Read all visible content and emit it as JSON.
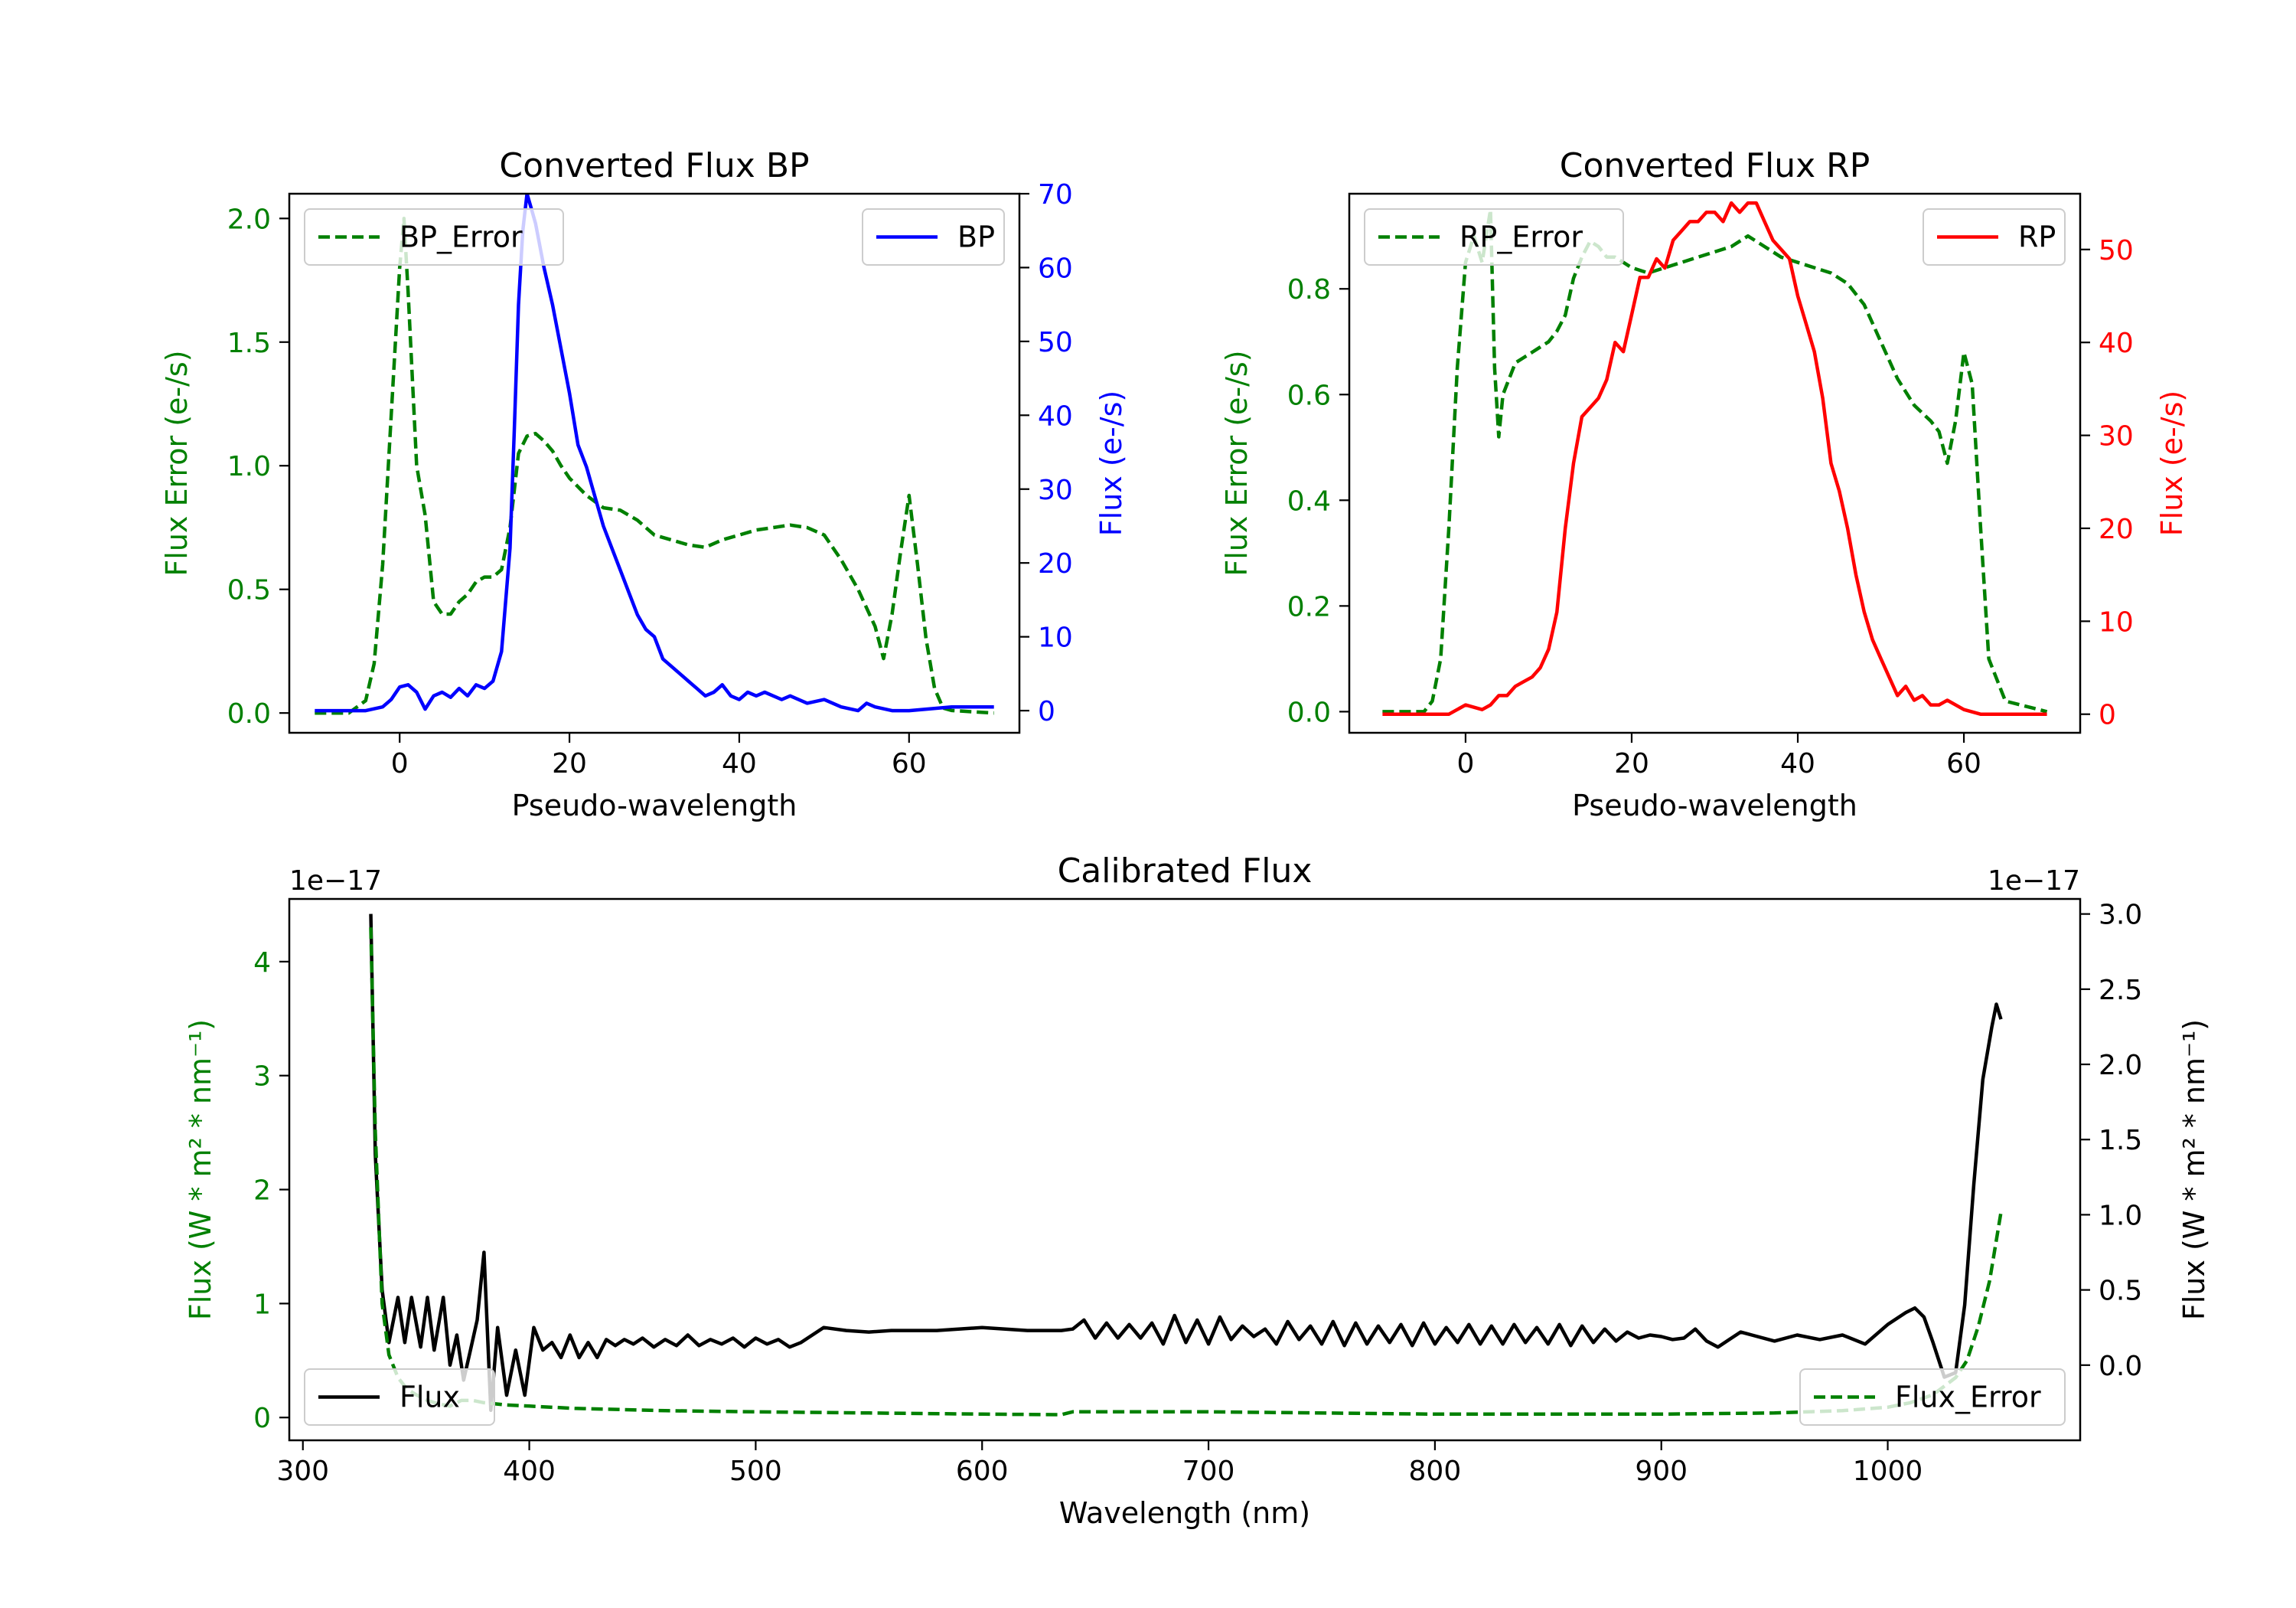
{
  "colors": {
    "bp": "#0000ff",
    "rp": "#ff0000",
    "error": "#008000",
    "flux": "#000000",
    "axis": "#000000"
  },
  "chart_data": [
    {
      "id": "bp",
      "type": "line",
      "title": "Converted Flux BP",
      "xlabel": "Pseudo-wavelength",
      "ylabel_left": "Flux Error (e-/s)",
      "ylabel_right": "Flux (e-/s)",
      "xlim": [
        -13,
        73
      ],
      "ylim_left": [
        -0.08,
        2.1
      ],
      "ylim_right": [
        -3,
        70
      ],
      "xticks": [
        0,
        20,
        40,
        60
      ],
      "yticks_left": [
        0.0,
        0.5,
        1.0,
        1.5,
        2.0
      ],
      "yticks_left_labels": [
        "0.0",
        "0.5",
        "1.0",
        "1.5",
        "2.0"
      ],
      "yticks_right": [
        0,
        10,
        20,
        30,
        40,
        50,
        60,
        70
      ],
      "yticks_right_labels": [
        "0",
        "10",
        "20",
        "30",
        "40",
        "50",
        "60",
        "70"
      ],
      "legend_left": "BP_Error",
      "legend_right": "BP",
      "series": [
        {
          "name": "BP_Error",
          "axis": "left",
          "style": "dashed",
          "color": "#008000",
          "x": [
            -10,
            -6,
            -4,
            -3,
            -2,
            -1,
            0,
            0.5,
            1,
            2,
            3,
            4,
            5,
            6,
            7,
            8,
            9,
            10,
            11,
            12,
            13,
            14,
            15,
            16,
            17,
            18,
            19,
            20,
            22,
            24,
            26,
            28,
            30,
            32,
            34,
            36,
            38,
            40,
            42,
            44,
            46,
            48,
            50,
            52,
            54,
            56,
            57,
            58,
            59,
            60,
            61,
            62,
            63,
            64,
            65,
            70
          ],
          "y": [
            0.0,
            0.0,
            0.05,
            0.2,
            0.6,
            1.2,
            1.8,
            2.0,
            1.7,
            1.0,
            0.8,
            0.45,
            0.4,
            0.4,
            0.45,
            0.48,
            0.53,
            0.55,
            0.55,
            0.58,
            0.75,
            1.05,
            1.12,
            1.13,
            1.1,
            1.06,
            1.0,
            0.95,
            0.88,
            0.83,
            0.82,
            0.78,
            0.72,
            0.7,
            0.68,
            0.67,
            0.7,
            0.72,
            0.74,
            0.75,
            0.76,
            0.75,
            0.72,
            0.62,
            0.5,
            0.35,
            0.22,
            0.4,
            0.65,
            0.88,
            0.6,
            0.3,
            0.1,
            0.02,
            0.01,
            0.0
          ]
        },
        {
          "name": "BP",
          "axis": "right",
          "style": "solid",
          "color": "#0000ff",
          "x": [
            -10,
            -6,
            -4,
            -2,
            -1,
            0,
            1,
            2,
            3,
            4,
            5,
            6,
            7,
            8,
            9,
            10,
            11,
            12,
            13,
            13.5,
            14,
            14.5,
            15,
            15.5,
            16,
            17,
            18,
            19,
            20,
            21,
            22,
            23,
            24,
            25,
            26,
            27,
            28,
            29,
            30,
            31,
            32,
            33,
            34,
            35,
            36,
            37,
            38,
            39,
            40,
            41,
            42,
            43,
            44,
            45,
            46,
            48,
            50,
            52,
            54,
            55,
            56,
            58,
            60,
            65,
            70
          ],
          "y": [
            0,
            0,
            0,
            0.5,
            1.5,
            3.2,
            3.5,
            2.5,
            0.2,
            2.0,
            2.5,
            1.8,
            3.0,
            2.0,
            3.5,
            3.0,
            4.0,
            8.0,
            22,
            38,
            55,
            65,
            70,
            68,
            66,
            60,
            55,
            49,
            43,
            36,
            33,
            29,
            25,
            22,
            19,
            16,
            13,
            11,
            10,
            7,
            6,
            5,
            4,
            3,
            2,
            2.5,
            3.5,
            2,
            1.5,
            2.5,
            2.0,
            2.5,
            2.0,
            1.5,
            2.0,
            1.0,
            1.5,
            0.5,
            0.0,
            1.0,
            0.5,
            0.0,
            0.0,
            0.5,
            0.5
          ]
        }
      ]
    },
    {
      "id": "rp",
      "type": "line",
      "title": "Converted Flux RP",
      "xlabel": "Pseudo-wavelength",
      "ylabel_left": "Flux Error (e-/s)",
      "ylabel_right": "Flux (e-/s)",
      "xlim": [
        -14,
        74
      ],
      "ylim_left": [
        -0.04,
        0.98
      ],
      "ylim_right": [
        -2,
        56
      ],
      "xticks": [
        0,
        20,
        40,
        60
      ],
      "yticks_left": [
        0.0,
        0.2,
        0.4,
        0.6,
        0.8
      ],
      "yticks_left_labels": [
        "0.0",
        "0.2",
        "0.4",
        "0.6",
        "0.8"
      ],
      "yticks_right": [
        0,
        10,
        20,
        30,
        40,
        50
      ],
      "yticks_right_labels": [
        "0",
        "10",
        "20",
        "30",
        "40",
        "50"
      ],
      "legend_left": "RP_Error",
      "legend_right": "RP",
      "series": [
        {
          "name": "RP_Error",
          "axis": "left",
          "style": "dashed",
          "color": "#008000",
          "x": [
            -10,
            -5,
            -4,
            -3,
            -2,
            -1,
            0,
            1,
            2,
            3,
            3.5,
            4,
            4.5,
            5,
            6,
            7,
            8,
            9,
            10,
            11,
            12,
            13,
            14,
            15,
            16,
            17,
            18,
            20,
            22,
            24,
            26,
            28,
            30,
            32,
            34,
            36,
            38,
            40,
            42,
            44,
            46,
            48,
            50,
            52,
            54,
            56,
            57,
            58,
            59,
            60,
            61,
            62,
            63,
            65,
            70
          ],
          "y": [
            0.0,
            0.0,
            0.02,
            0.1,
            0.35,
            0.65,
            0.85,
            0.9,
            0.85,
            0.95,
            0.65,
            0.52,
            0.6,
            0.62,
            0.66,
            0.67,
            0.68,
            0.69,
            0.7,
            0.72,
            0.75,
            0.82,
            0.86,
            0.89,
            0.88,
            0.86,
            0.86,
            0.84,
            0.83,
            0.84,
            0.85,
            0.86,
            0.87,
            0.88,
            0.9,
            0.88,
            0.86,
            0.85,
            0.84,
            0.83,
            0.81,
            0.77,
            0.7,
            0.63,
            0.58,
            0.55,
            0.53,
            0.47,
            0.55,
            0.68,
            0.62,
            0.35,
            0.1,
            0.02,
            0.0
          ]
        },
        {
          "name": "RP",
          "axis": "right",
          "style": "solid",
          "color": "#ff0000",
          "x": [
            -10,
            -4,
            -2,
            0,
            2,
            3,
            4,
            5,
            6,
            7,
            8,
            9,
            10,
            11,
            12,
            13,
            14,
            15,
            16,
            17,
            18,
            19,
            20,
            21,
            22,
            23,
            24,
            25,
            26,
            27,
            28,
            29,
            30,
            31,
            32,
            33,
            34,
            35,
            36,
            37,
            38,
            39,
            40,
            41,
            42,
            43,
            44,
            45,
            46,
            47,
            48,
            49,
            50,
            51,
            52,
            53,
            54,
            55,
            56,
            57,
            58,
            59,
            60,
            62,
            65,
            70
          ],
          "y": [
            0,
            0,
            0,
            1,
            0.5,
            1,
            2,
            2,
            3,
            3.5,
            4,
            5,
            7,
            11,
            20,
            27,
            32,
            33,
            34,
            36,
            40,
            39,
            43,
            47,
            47,
            49,
            48,
            51,
            52,
            53,
            53,
            54,
            54,
            53,
            55,
            54,
            55,
            55,
            53,
            51,
            50,
            49,
            45,
            42,
            39,
            34,
            27,
            24,
            20,
            15,
            11,
            8,
            6,
            4,
            2,
            3,
            1.5,
            2,
            1,
            1,
            1.5,
            1,
            0.5,
            0,
            0,
            0
          ]
        }
      ]
    },
    {
      "id": "cal",
      "type": "line",
      "title": "Calibrated Flux",
      "xlabel": "Wavelength (nm)",
      "ylabel_left": "Flux (W * m² * nm⁻¹)",
      "ylabel_right": "Flux (W * m² * nm⁻¹)",
      "offset_left": "1e−17",
      "offset_right": "1e−17",
      "xlim": [
        294,
        1085
      ],
      "ylim_left": [
        -0.2,
        4.55
      ],
      "ylim_right": [
        -0.5,
        3.1
      ],
      "xticks": [
        300,
        400,
        500,
        600,
        700,
        800,
        900,
        1000
      ],
      "yticks_left": [
        0,
        1,
        2,
        3,
        4
      ],
      "yticks_left_labels": [
        "0",
        "1",
        "2",
        "3",
        "4"
      ],
      "yticks_right": [
        0.0,
        0.5,
        1.0,
        1.5,
        2.0,
        2.5,
        3.0
      ],
      "yticks_right_labels": [
        "0.0",
        "0.5",
        "1.0",
        "1.5",
        "2.0",
        "2.5",
        "3.0"
      ],
      "legend_left": "Flux",
      "legend_right": "Flux_Error",
      "series": [
        {
          "name": "Flux",
          "axis": "right",
          "style": "solid",
          "color": "#000000",
          "x": [
            330,
            332,
            335,
            338,
            342,
            345,
            348,
            352,
            355,
            358,
            362,
            365,
            368,
            371,
            374,
            377,
            380,
            383,
            386,
            390,
            394,
            398,
            402,
            406,
            410,
            414,
            418,
            422,
            426,
            430,
            434,
            438,
            442,
            446,
            450,
            455,
            460,
            465,
            470,
            475,
            480,
            485,
            490,
            495,
            500,
            505,
            510,
            515,
            520,
            530,
            540,
            550,
            560,
            580,
            600,
            620,
            635,
            640,
            645,
            650,
            655,
            660,
            665,
            670,
            675,
            680,
            685,
            690,
            695,
            700,
            705,
            710,
            715,
            720,
            725,
            730,
            735,
            740,
            745,
            750,
            755,
            760,
            765,
            770,
            775,
            780,
            785,
            790,
            795,
            800,
            805,
            810,
            815,
            820,
            825,
            830,
            835,
            840,
            845,
            850,
            855,
            860,
            865,
            870,
            875,
            880,
            885,
            890,
            895,
            900,
            905,
            910,
            915,
            920,
            925,
            930,
            935,
            940,
            950,
            960,
            970,
            980,
            990,
            1000,
            1008,
            1012,
            1016,
            1020,
            1025,
            1030,
            1034,
            1038,
            1042,
            1046,
            1048,
            1050
          ],
          "y": [
            3.0,
            1.4,
            0.5,
            0.15,
            0.45,
            0.15,
            0.45,
            0.12,
            0.45,
            0.1,
            0.45,
            0.0,
            0.2,
            -0.1,
            0.1,
            0.3,
            0.75,
            -0.3,
            0.25,
            -0.2,
            0.1,
            -0.2,
            0.25,
            0.1,
            0.15,
            0.05,
            0.2,
            0.05,
            0.15,
            0.05,
            0.17,
            0.13,
            0.17,
            0.14,
            0.18,
            0.12,
            0.17,
            0.13,
            0.2,
            0.13,
            0.17,
            0.14,
            0.18,
            0.12,
            0.18,
            0.14,
            0.17,
            0.12,
            0.15,
            0.25,
            0.23,
            0.22,
            0.23,
            0.23,
            0.25,
            0.23,
            0.23,
            0.24,
            0.3,
            0.18,
            0.28,
            0.18,
            0.27,
            0.18,
            0.28,
            0.14,
            0.33,
            0.15,
            0.3,
            0.14,
            0.32,
            0.17,
            0.26,
            0.19,
            0.24,
            0.14,
            0.29,
            0.17,
            0.26,
            0.14,
            0.29,
            0.13,
            0.28,
            0.14,
            0.26,
            0.15,
            0.27,
            0.13,
            0.28,
            0.14,
            0.25,
            0.15,
            0.27,
            0.14,
            0.26,
            0.14,
            0.27,
            0.15,
            0.25,
            0.14,
            0.27,
            0.13,
            0.26,
            0.15,
            0.24,
            0.16,
            0.22,
            0.18,
            0.2,
            0.19,
            0.17,
            0.18,
            0.24,
            0.16,
            0.12,
            0.17,
            0.22,
            0.2,
            0.16,
            0.2,
            0.17,
            0.2,
            0.14,
            0.27,
            0.35,
            0.38,
            0.32,
            0.15,
            -0.08,
            -0.05,
            0.4,
            1.2,
            1.9,
            2.25,
            2.4,
            2.3
          ]
        },
        {
          "name": "Flux_Error",
          "axis": "left",
          "style": "dashed",
          "color": "#008000",
          "x": [
            330,
            332,
            335,
            338,
            342,
            346,
            350,
            355,
            360,
            365,
            370,
            375,
            380,
            390,
            400,
            420,
            440,
            460,
            500,
            550,
            600,
            635,
            640,
            700,
            800,
            900,
            950,
            980,
            1000,
            1010,
            1020,
            1030,
            1035,
            1040,
            1045,
            1050
          ],
          "y": [
            4.3,
            2.5,
            1.0,
            0.55,
            0.35,
            0.25,
            0.2,
            0.15,
            0.12,
            0.1,
            0.15,
            0.15,
            0.13,
            0.11,
            0.1,
            0.08,
            0.07,
            0.06,
            0.05,
            0.04,
            0.03,
            0.025,
            0.05,
            0.05,
            0.03,
            0.03,
            0.04,
            0.06,
            0.09,
            0.13,
            0.2,
            0.35,
            0.5,
            0.8,
            1.2,
            1.8
          ]
        }
      ]
    }
  ]
}
